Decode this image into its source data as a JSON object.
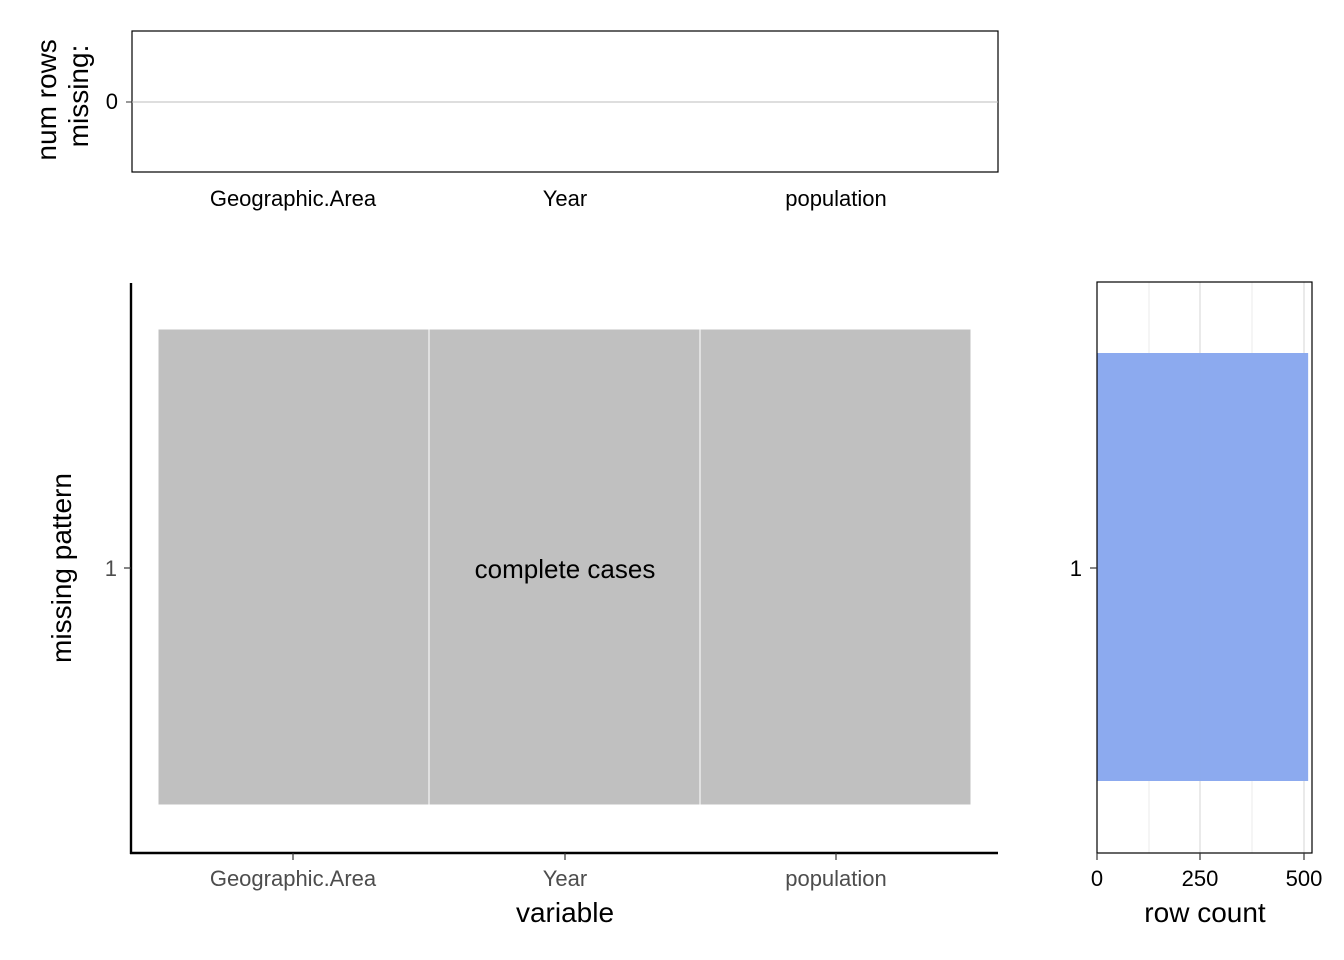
{
  "chart_data": [
    {
      "type": "bar",
      "panel": "top",
      "ylabel_lines": [
        "num rows",
        "missing:"
      ],
      "categories": [
        "Geographic.Area",
        "Year",
        "population"
      ],
      "values": [
        0,
        0,
        0
      ],
      "y_ticks": [
        "0"
      ],
      "grid": true
    },
    {
      "type": "heatmap",
      "panel": "main",
      "xlabel": "variable",
      "ylabel": "missing pattern",
      "categories": [
        "Geographic.Area",
        "Year",
        "population"
      ],
      "patterns": [
        {
          "id": "1",
          "cells": [
            "complete",
            "complete",
            "complete"
          ],
          "label": "complete cases"
        }
      ],
      "colors": {
        "complete": "#c0c0c0",
        "cell_border": "#ffffff"
      },
      "grid": false
    },
    {
      "type": "bar",
      "panel": "right",
      "orientation": "horizontal",
      "xlabel": "row count",
      "categories": [
        "1"
      ],
      "values": [
        510
      ],
      "x_ticks": [
        0,
        250,
        500
      ],
      "xlim": [
        0,
        510
      ],
      "color": "#88a7ee",
      "grid": true
    }
  ]
}
